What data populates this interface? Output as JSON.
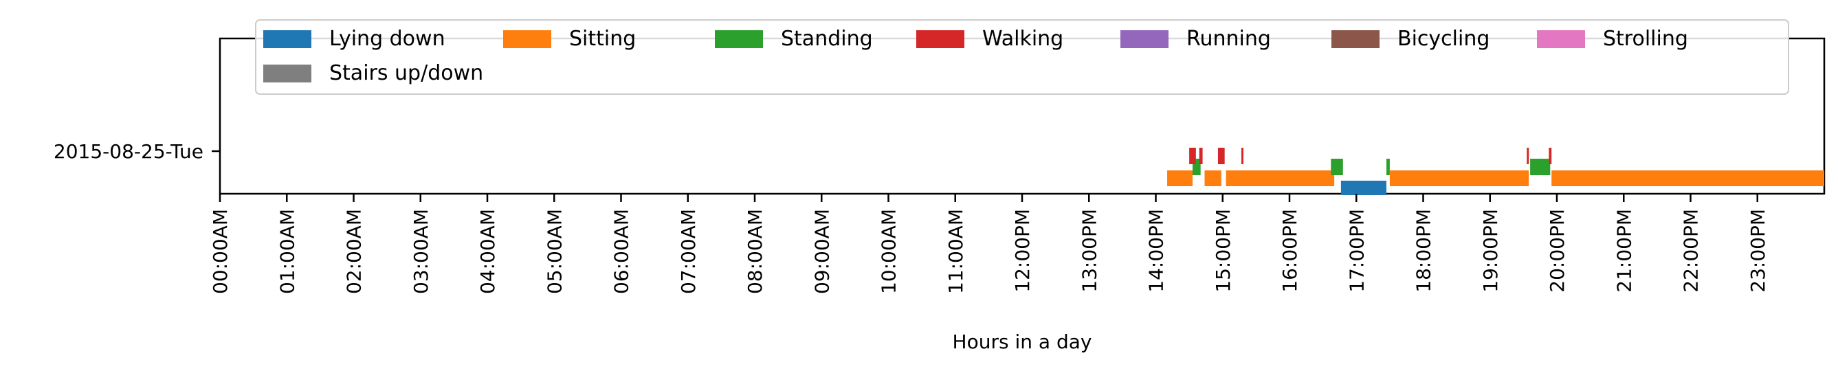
{
  "chart_data": {
    "type": "timeline",
    "xlabel": "Hours in a day",
    "ylabel": "",
    "xlim_hours": [
      0,
      24
    ],
    "x_ticks": [
      "00:00AM",
      "01:00AM",
      "02:00AM",
      "03:00AM",
      "04:00AM",
      "05:00AM",
      "06:00AM",
      "07:00AM",
      "08:00AM",
      "09:00AM",
      "10:00AM",
      "11:00AM",
      "12:00PM",
      "13:00PM",
      "14:00PM",
      "15:00PM",
      "16:00PM",
      "17:00PM",
      "18:00PM",
      "19:00PM",
      "20:00PM",
      "21:00PM",
      "22:00PM",
      "23:00PM"
    ],
    "rows": [
      "2015-08-25-Tue"
    ],
    "legend_position": "top",
    "grid": false,
    "series": [
      {
        "name": "Lying down",
        "color": "#1f77b4",
        "segments": [
          [
            16.77,
            17.45
          ]
        ]
      },
      {
        "name": "Sitting",
        "color": "#ff7f0e",
        "segments": [
          [
            14.17,
            14.55
          ],
          [
            14.73,
            14.98
          ],
          [
            15.05,
            16.67
          ],
          [
            17.5,
            19.58
          ],
          [
            19.92,
            24.0
          ]
        ]
      },
      {
        "name": "Standing",
        "color": "#2ca02c",
        "segments": [
          [
            14.55,
            14.67
          ],
          [
            16.62,
            16.8
          ],
          [
            17.45,
            17.5
          ],
          [
            19.6,
            19.9
          ]
        ]
      },
      {
        "name": "Walking",
        "color": "#d62728",
        "segments": [
          [
            14.5,
            14.6
          ],
          [
            14.65,
            14.7
          ],
          [
            14.93,
            15.03
          ],
          [
            15.28,
            15.3
          ],
          [
            19.55,
            19.58
          ],
          [
            19.88,
            19.92
          ]
        ]
      },
      {
        "name": "Running",
        "color": "#9467bd",
        "segments": []
      },
      {
        "name": "Bicycling",
        "color": "#8c564b",
        "segments": []
      },
      {
        "name": "Strolling",
        "color": "#e377c2",
        "segments": []
      },
      {
        "name": "Stairs up/down",
        "color": "#7f7f7f",
        "segments": []
      }
    ]
  }
}
